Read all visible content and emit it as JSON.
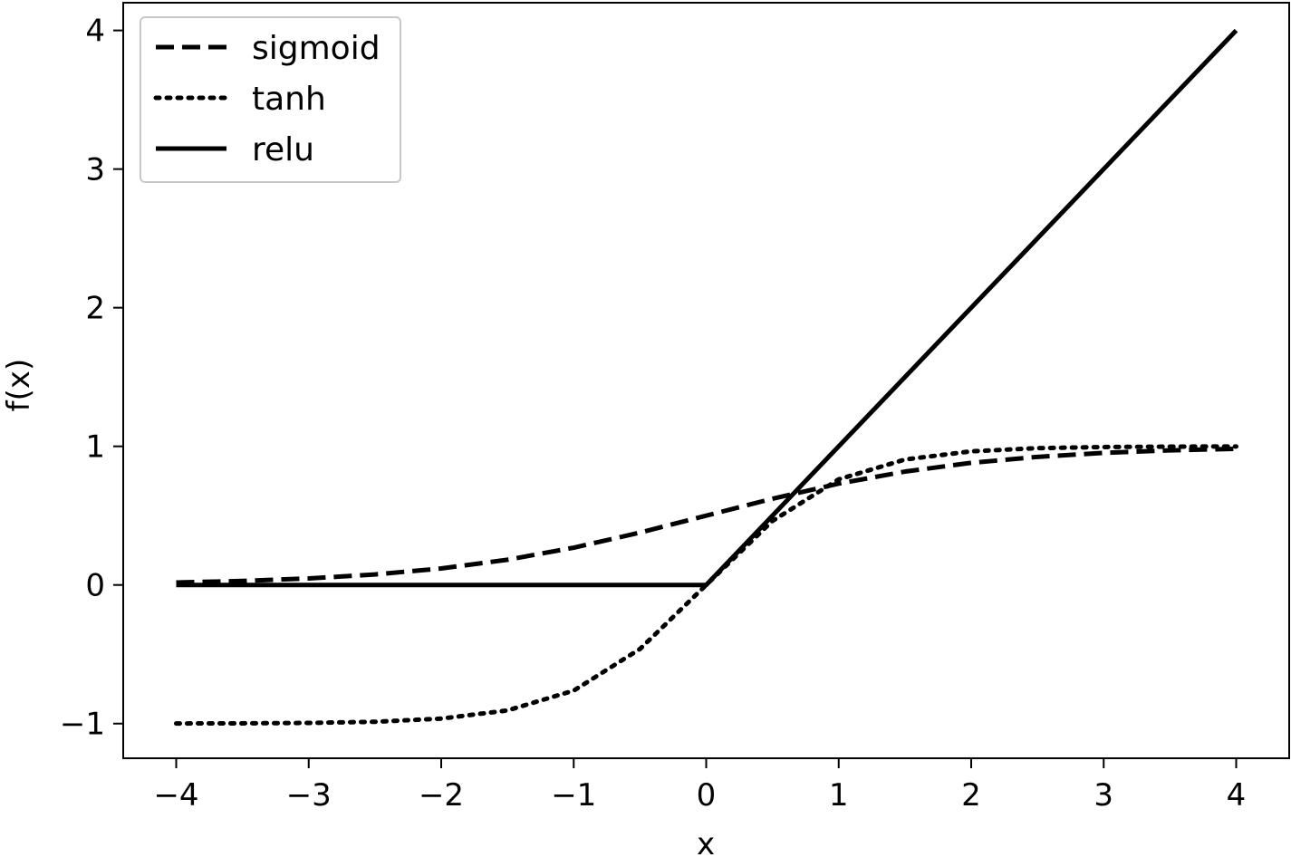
{
  "chart_data": {
    "type": "line",
    "title": "",
    "xlabel": "x",
    "ylabel": "f(x)",
    "xlim": [
      -4.4,
      4.4
    ],
    "ylim": [
      -1.25,
      4.2
    ],
    "xticks": [
      -4,
      -3,
      -2,
      -1,
      0,
      1,
      2,
      3,
      4
    ],
    "yticks": [
      -1,
      0,
      1,
      2,
      3,
      4
    ],
    "xtick_labels": [
      "−4",
      "−3",
      "−2",
      "−1",
      "0",
      "1",
      "2",
      "3",
      "4"
    ],
    "ytick_labels": [
      "−1",
      "0",
      "1",
      "2",
      "3",
      "4"
    ],
    "grid": false,
    "legend_position": "upper-left",
    "x_range": [
      -4,
      4
    ],
    "series": [
      {
        "name": "sigmoid",
        "style": "dashed",
        "color": "#000000",
        "x": [
          -4,
          -3.5,
          -3,
          -2.5,
          -2,
          -1.5,
          -1,
          -0.5,
          0,
          0.5,
          1,
          1.5,
          2,
          2.5,
          3,
          3.5,
          4
        ],
        "y": [
          0.018,
          0.029,
          0.047,
          0.076,
          0.119,
          0.182,
          0.269,
          0.378,
          0.5,
          0.622,
          0.731,
          0.818,
          0.881,
          0.924,
          0.953,
          0.971,
          0.982
        ]
      },
      {
        "name": "tanh",
        "style": "dotted",
        "color": "#000000",
        "x": [
          -4,
          -3.5,
          -3,
          -2.5,
          -2,
          -1.5,
          -1,
          -0.5,
          0,
          0.5,
          1,
          1.5,
          2,
          2.5,
          3,
          3.5,
          4
        ],
        "y": [
          -0.999,
          -0.998,
          -0.995,
          -0.987,
          -0.964,
          -0.905,
          -0.762,
          -0.462,
          0,
          0.462,
          0.762,
          0.905,
          0.964,
          0.987,
          0.995,
          0.998,
          0.999
        ]
      },
      {
        "name": "relu",
        "style": "solid",
        "color": "#000000",
        "x": [
          -4,
          0,
          4
        ],
        "y": [
          0,
          0,
          4
        ]
      }
    ]
  }
}
